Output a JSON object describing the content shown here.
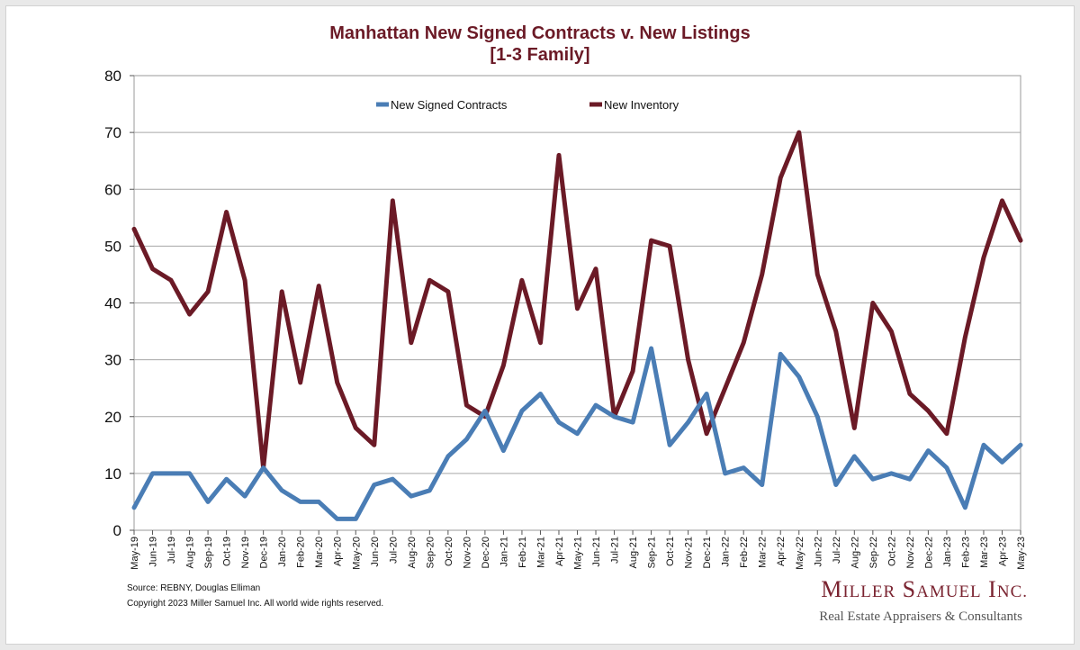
{
  "chart_data": {
    "type": "line",
    "title": "Manhattan New Signed Contracts v. New Listings",
    "subtitle": "[1-3 Family]",
    "xlabel": "",
    "ylabel": "",
    "ylim": [
      0,
      80
    ],
    "yticks": [
      0,
      10,
      20,
      30,
      40,
      50,
      60,
      70,
      80
    ],
    "grid": true,
    "legend_position": "top-center",
    "categories": [
      "May-19",
      "Jun-19",
      "Jul-19",
      "Aug-19",
      "Sep-19",
      "Oct-19",
      "Nov-19",
      "Dec-19",
      "Jan-20",
      "Feb-20",
      "Mar-20",
      "Apr-20",
      "May-20",
      "Jun-20",
      "Jul-20",
      "Aug-20",
      "Sep-20",
      "Oct-20",
      "Nov-20",
      "Dec-20",
      "Jan-21",
      "Feb-21",
      "Mar-21",
      "Apr-21",
      "May-21",
      "Jun-21",
      "Jul-21",
      "Aug-21",
      "Sep-21",
      "Oct-21",
      "Nov-21",
      "Dec-21",
      "Jan-22",
      "Feb-22",
      "Mar-22",
      "Apr-22",
      "May-22",
      "Jun-22",
      "Jul-22",
      "Aug-22",
      "Sep-22",
      "Oct-22",
      "Nov-22",
      "Dec-22",
      "Jan-23",
      "Feb-23",
      "Mar-23",
      "Apr-23",
      "May-23"
    ],
    "series": [
      {
        "name": "New Signed Contracts",
        "color": "#4a7db5",
        "values": [
          4,
          10,
          10,
          10,
          5,
          9,
          6,
          11,
          7,
          5,
          5,
          2,
          2,
          8,
          9,
          6,
          7,
          13,
          16,
          21,
          14,
          21,
          24,
          19,
          17,
          22,
          20,
          19,
          32,
          15,
          19,
          24,
          10,
          11,
          8,
          31,
          27,
          20,
          8,
          13,
          9,
          10,
          9,
          14,
          11,
          4,
          15,
          12,
          15
        ]
      },
      {
        "name": "New Inventory",
        "color": "#6b1a26",
        "values": [
          53,
          46,
          44,
          38,
          42,
          56,
          44,
          11,
          42,
          26,
          43,
          26,
          18,
          15,
          58,
          33,
          44,
          42,
          22,
          20,
          29,
          44,
          33,
          66,
          39,
          46,
          20,
          28,
          51,
          50,
          30,
          17,
          25,
          33,
          45,
          62,
          70,
          45,
          35,
          18,
          40,
          35,
          24,
          21,
          17,
          34,
          48,
          58,
          51
        ]
      }
    ]
  },
  "footer": {
    "source": "Source: REBNY, Douglas Elliman",
    "copyright": "Copyright 2023 Miller Samuel Inc.  All world wide rights reserved."
  },
  "logo": {
    "name_initial_1": "M",
    "name_rest_1": "ILLER",
    "name_initial_2": "S",
    "name_rest_2": "AMUEL",
    "name_initial_3": "I",
    "name_rest_3": "NC.",
    "tagline": "Real Estate Appraisers & Consultants"
  }
}
